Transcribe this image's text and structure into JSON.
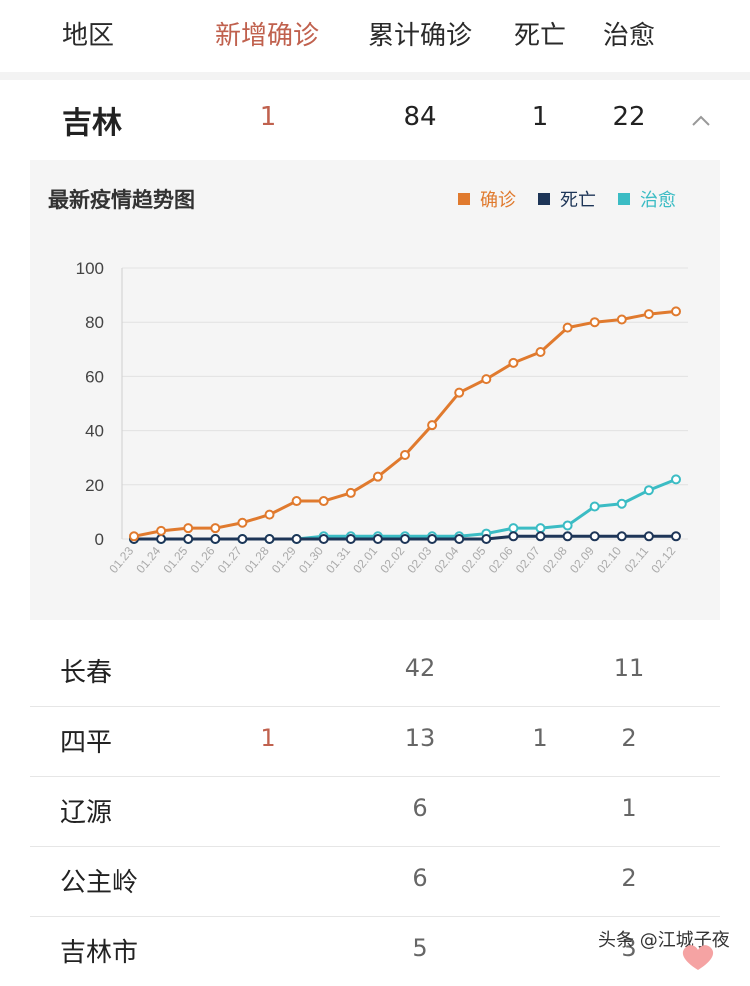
{
  "header": {
    "col_region": "地区",
    "col_new": "新增确诊",
    "col_total": "累计确诊",
    "col_death": "死亡",
    "col_cured": "治愈"
  },
  "province": {
    "name": "吉林",
    "new": "1",
    "total": "84",
    "death": "1",
    "cured": "22"
  },
  "chart": {
    "title": "最新疫情趋势图",
    "legend": [
      {
        "label": "确诊",
        "color": "#e07a2e"
      },
      {
        "label": "死亡",
        "color": "#1d3557"
      },
      {
        "label": "治愈",
        "color": "#3bbcc4"
      }
    ]
  },
  "chart_data": {
    "type": "line",
    "title": "最新疫情趋势图",
    "x": [
      "01.23",
      "01.24",
      "01.25",
      "01.26",
      "01.27",
      "01.28",
      "01.29",
      "01.30",
      "01.31",
      "02.01",
      "02.02",
      "02.03",
      "02.04",
      "02.05",
      "02.06",
      "02.07",
      "02.08",
      "02.09",
      "02.10",
      "02.11",
      "02.12"
    ],
    "yticks": [
      0,
      20,
      40,
      60,
      80,
      100
    ],
    "ylim": [
      0,
      100
    ],
    "grid": true,
    "legend_position": "top-right",
    "series": [
      {
        "name": "确诊",
        "color": "#e07a2e",
        "values": [
          1,
          3,
          4,
          4,
          6,
          9,
          14,
          14,
          17,
          23,
          31,
          42,
          54,
          59,
          65,
          69,
          78,
          80,
          81,
          83,
          84
        ]
      },
      {
        "name": "死亡",
        "color": "#1d3557",
        "values": [
          0,
          0,
          0,
          0,
          0,
          0,
          0,
          0,
          0,
          0,
          0,
          0,
          0,
          0,
          1,
          1,
          1,
          1,
          1,
          1,
          1
        ]
      },
      {
        "name": "治愈",
        "color": "#3bbcc4",
        "values": [
          0,
          0,
          0,
          0,
          0,
          0,
          0,
          1,
          1,
          1,
          1,
          1,
          1,
          2,
          4,
          4,
          5,
          12,
          13,
          18,
          22
        ]
      }
    ]
  },
  "cities": [
    {
      "name": "长春",
      "new": "",
      "total": "42",
      "death": "",
      "cured": "11"
    },
    {
      "name": "四平",
      "new": "1",
      "total": "13",
      "death": "1",
      "cured": "2"
    },
    {
      "name": "辽源",
      "new": "",
      "total": "6",
      "death": "",
      "cured": "1"
    },
    {
      "name": "公主岭",
      "new": "",
      "total": "6",
      "death": "",
      "cured": "2"
    },
    {
      "name": "吉林市",
      "new": "",
      "total": "5",
      "death": "",
      "cured": "3"
    }
  ],
  "watermark": "头条 @江城子夜"
}
